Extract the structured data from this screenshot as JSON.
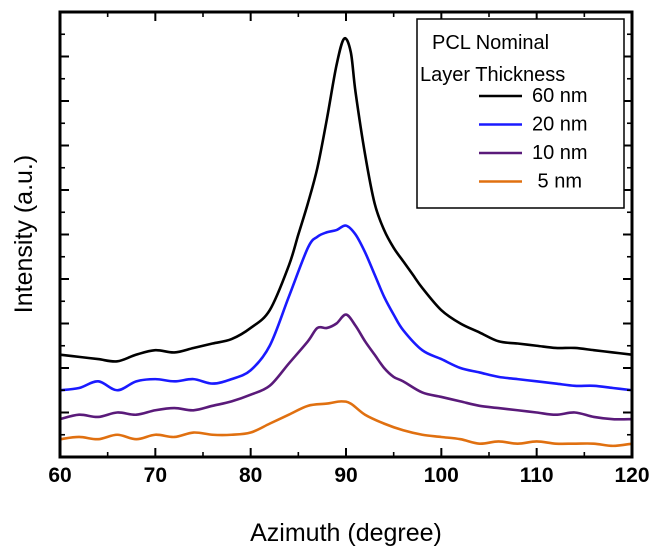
{
  "chart_data": {
    "type": "line",
    "title": "",
    "xlabel": "Azimuth (degree)",
    "ylabel": "Intensity (a.u.)",
    "xlim": [
      60,
      120
    ],
    "ylim": [
      0,
      10
    ],
    "xticks": [
      60,
      70,
      80,
      90,
      100,
      110,
      120
    ],
    "x_tick_labels": [
      "60",
      "70",
      "80",
      "90",
      "100",
      "110",
      "120"
    ],
    "y_tick_labels_shown": false,
    "grid": false,
    "legend": {
      "position": "top-right",
      "title": [
        "PCL Nominal",
        "Layer Thickness"
      ],
      "entries": [
        "60 nm",
        "20 nm",
        "10 nm",
        " 5 nm"
      ]
    },
    "series": [
      {
        "name": "60 nm",
        "color": "#000000",
        "points": [
          [
            60,
            2.3
          ],
          [
            62,
            2.25
          ],
          [
            64,
            2.2
          ],
          [
            66,
            2.15
          ],
          [
            68,
            2.3
          ],
          [
            70,
            2.4
          ],
          [
            72,
            2.35
          ],
          [
            74,
            2.45
          ],
          [
            76,
            2.55
          ],
          [
            78,
            2.65
          ],
          [
            80,
            2.9
          ],
          [
            82,
            3.3
          ],
          [
            84,
            4.3
          ],
          [
            85,
            5.0
          ],
          [
            86,
            5.7
          ],
          [
            87,
            6.5
          ],
          [
            88,
            7.6
          ],
          [
            89,
            8.8
          ],
          [
            89.8,
            9.4
          ],
          [
            90.5,
            9.1
          ],
          [
            91,
            8.2
          ],
          [
            92,
            6.8
          ],
          [
            93,
            5.7
          ],
          [
            94,
            5.1
          ],
          [
            95,
            4.7
          ],
          [
            96,
            4.4
          ],
          [
            97,
            4.1
          ],
          [
            98,
            3.8
          ],
          [
            100,
            3.3
          ],
          [
            102,
            3.0
          ],
          [
            104,
            2.8
          ],
          [
            106,
            2.6
          ],
          [
            108,
            2.55
          ],
          [
            110,
            2.5
          ],
          [
            112,
            2.45
          ],
          [
            114,
            2.45
          ],
          [
            116,
            2.4
          ],
          [
            118,
            2.35
          ],
          [
            120,
            2.3
          ]
        ]
      },
      {
        "name": "20 nm",
        "color": "#1a1aff",
        "points": [
          [
            60,
            1.5
          ],
          [
            62,
            1.55
          ],
          [
            64,
            1.7
          ],
          [
            66,
            1.5
          ],
          [
            68,
            1.7
          ],
          [
            70,
            1.75
          ],
          [
            72,
            1.7
          ],
          [
            74,
            1.75
          ],
          [
            76,
            1.65
          ],
          [
            78,
            1.75
          ],
          [
            80,
            1.95
          ],
          [
            82,
            2.5
          ],
          [
            84,
            3.6
          ],
          [
            86,
            4.7
          ],
          [
            87,
            4.95
          ],
          [
            88,
            5.05
          ],
          [
            89,
            5.1
          ],
          [
            90,
            5.2
          ],
          [
            91,
            5.0
          ],
          [
            92,
            4.6
          ],
          [
            93,
            4.1
          ],
          [
            94,
            3.6
          ],
          [
            95,
            3.2
          ],
          [
            96,
            2.85
          ],
          [
            98,
            2.4
          ],
          [
            100,
            2.2
          ],
          [
            102,
            2.0
          ],
          [
            104,
            1.9
          ],
          [
            106,
            1.8
          ],
          [
            108,
            1.75
          ],
          [
            110,
            1.7
          ],
          [
            112,
            1.65
          ],
          [
            114,
            1.6
          ],
          [
            116,
            1.6
          ],
          [
            118,
            1.55
          ],
          [
            120,
            1.5
          ]
        ]
      },
      {
        "name": "10 nm",
        "color": "#5a1a7a",
        "points": [
          [
            60,
            0.85
          ],
          [
            62,
            0.95
          ],
          [
            64,
            0.9
          ],
          [
            66,
            1.0
          ],
          [
            68,
            0.95
          ],
          [
            70,
            1.05
          ],
          [
            72,
            1.1
          ],
          [
            74,
            1.05
          ],
          [
            76,
            1.15
          ],
          [
            78,
            1.25
          ],
          [
            80,
            1.4
          ],
          [
            82,
            1.6
          ],
          [
            84,
            2.1
          ],
          [
            86,
            2.6
          ],
          [
            87,
            2.9
          ],
          [
            88,
            2.9
          ],
          [
            89,
            3.0
          ],
          [
            90,
            3.2
          ],
          [
            91,
            2.95
          ],
          [
            92,
            2.6
          ],
          [
            93,
            2.3
          ],
          [
            94,
            2.0
          ],
          [
            95,
            1.8
          ],
          [
            96,
            1.7
          ],
          [
            98,
            1.45
          ],
          [
            100,
            1.35
          ],
          [
            102,
            1.25
          ],
          [
            104,
            1.15
          ],
          [
            106,
            1.1
          ],
          [
            108,
            1.05
          ],
          [
            110,
            1.0
          ],
          [
            112,
            0.95
          ],
          [
            114,
            1.0
          ],
          [
            116,
            0.9
          ],
          [
            118,
            0.85
          ],
          [
            120,
            0.85
          ]
        ]
      },
      {
        "name": " 5 nm",
        "color": "#e07010",
        "points": [
          [
            60,
            0.4
          ],
          [
            62,
            0.45
          ],
          [
            64,
            0.4
          ],
          [
            66,
            0.5
          ],
          [
            68,
            0.4
          ],
          [
            70,
            0.5
          ],
          [
            72,
            0.45
          ],
          [
            74,
            0.55
          ],
          [
            76,
            0.5
          ],
          [
            78,
            0.5
          ],
          [
            80,
            0.55
          ],
          [
            82,
            0.75
          ],
          [
            84,
            0.95
          ],
          [
            86,
            1.15
          ],
          [
            88,
            1.2
          ],
          [
            89.5,
            1.25
          ],
          [
            90.5,
            1.2
          ],
          [
            92,
            0.95
          ],
          [
            94,
            0.75
          ],
          [
            96,
            0.6
          ],
          [
            98,
            0.5
          ],
          [
            100,
            0.45
          ],
          [
            102,
            0.4
          ],
          [
            104,
            0.3
          ],
          [
            106,
            0.35
          ],
          [
            108,
            0.3
          ],
          [
            110,
            0.35
          ],
          [
            112,
            0.3
          ],
          [
            114,
            0.3
          ],
          [
            116,
            0.3
          ],
          [
            118,
            0.25
          ],
          [
            120,
            0.3
          ]
        ]
      }
    ]
  }
}
